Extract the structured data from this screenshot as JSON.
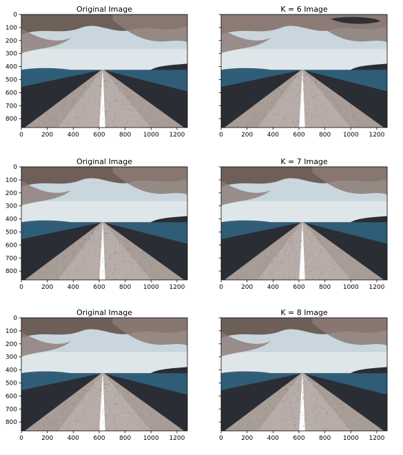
{
  "chart_data": [
    {
      "type": "image",
      "title": "Original Image",
      "xticks": [
        0,
        200,
        400,
        600,
        800,
        1000,
        1200
      ],
      "yticks": [
        0,
        100,
        200,
        300,
        400,
        500,
        600,
        700,
        800
      ],
      "xlim": [
        0,
        1280
      ],
      "ylim": [
        868,
        0
      ],
      "variant": 0
    },
    {
      "type": "image",
      "title": "K = 6 Image",
      "xticks": [
        0,
        200,
        400,
        600,
        800,
        1000,
        1200
      ],
      "yticks": [],
      "xlim": [
        0,
        1280
      ],
      "ylim": [
        868,
        0
      ],
      "variant": 1
    },
    {
      "type": "image",
      "title": "Original Image",
      "xticks": [
        0,
        200,
        400,
        600,
        800,
        1000,
        1200
      ],
      "yticks": [
        0,
        100,
        200,
        300,
        400,
        500,
        600,
        700,
        800
      ],
      "xlim": [
        0,
        1280
      ],
      "ylim": [
        868,
        0
      ],
      "variant": 0
    },
    {
      "type": "image",
      "title": "K = 7 Image",
      "xticks": [
        0,
        200,
        400,
        600,
        800,
        1000,
        1200
      ],
      "yticks": [],
      "xlim": [
        0,
        1280
      ],
      "ylim": [
        868,
        0
      ],
      "variant": 2
    },
    {
      "type": "image",
      "title": "Original Image",
      "xticks": [
        0,
        200,
        400,
        600,
        800,
        1000,
        1200
      ],
      "yticks": [
        0,
        100,
        200,
        300,
        400,
        500,
        600,
        700,
        800
      ],
      "xlim": [
        0,
        1280
      ],
      "ylim": [
        868,
        0
      ],
      "variant": 0
    },
    {
      "type": "image",
      "title": "K = 8 Image",
      "xticks": [
        0,
        200,
        400,
        600,
        800,
        1000,
        1200
      ],
      "yticks": [],
      "xlim": [
        0,
        1280
      ],
      "ylim": [
        868,
        0
      ],
      "variant": 3
    }
  ],
  "colors": {
    "sky_dark": "#6e5f58",
    "cloud_brown": "#8c7b74",
    "sky_light": "#c9d6de",
    "horizon_light": "#dfe6ea",
    "water": "#2f5d78",
    "field_dark": "#2a2d33",
    "road": "#a89c97",
    "road_light": "#c2bab6",
    "stripe": "#ffffff"
  }
}
